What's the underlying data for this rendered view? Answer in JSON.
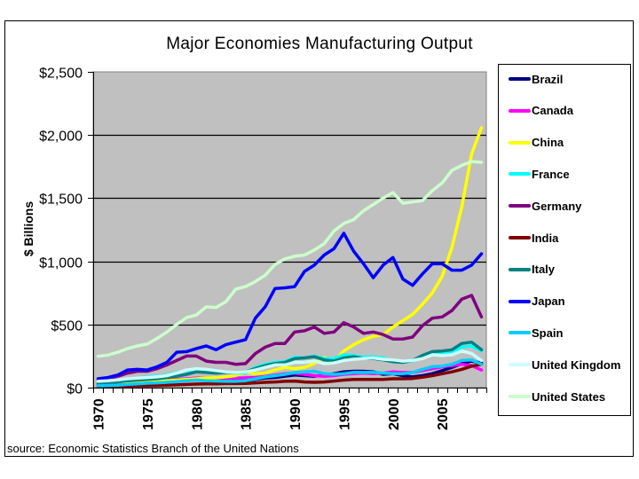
{
  "chart_data": {
    "type": "line",
    "title": "Major Economies Manufacturing Output",
    "xlabel": "",
    "ylabel": "$ Billions",
    "source": "source: Economic Statistics Branch of the United Nations",
    "ylim": [
      0,
      2500
    ],
    "yticks": [
      0,
      500,
      1000,
      1500,
      2000,
      2500
    ],
    "ytick_labels": [
      "$0",
      "$500",
      "$1,000",
      "$1,500",
      "$2,000",
      "$2,500"
    ],
    "xlim": [
      1970,
      2009
    ],
    "xtick_labels": [
      "1970",
      "1975",
      "1980",
      "1985",
      "1990",
      "1995",
      "2000",
      "2005"
    ],
    "grid": "horizontal",
    "plot_background": "#c0c0c0",
    "legend_position": "right",
    "x": [
      1970,
      1971,
      1972,
      1973,
      1974,
      1975,
      1976,
      1977,
      1978,
      1979,
      1980,
      1981,
      1982,
      1983,
      1984,
      1985,
      1986,
      1987,
      1988,
      1989,
      1990,
      1991,
      1992,
      1993,
      1994,
      1995,
      1996,
      1997,
      1998,
      1999,
      2000,
      2001,
      2002,
      2003,
      2004,
      2005,
      2006,
      2007,
      2008,
      2009
    ],
    "series": [
      {
        "name": "Brazil",
        "color": "#000080",
        "values": [
          20,
          22,
          26,
          32,
          38,
          40,
          45,
          50,
          55,
          60,
          70,
          72,
          68,
          55,
          55,
          58,
          65,
          75,
          80,
          90,
          100,
          95,
          90,
          100,
          110,
          125,
          130,
          130,
          125,
          105,
          110,
          95,
          85,
          95,
          110,
          135,
          160,
          190,
          210,
          195
        ]
      },
      {
        "name": "Canada",
        "color": "#ff00ff",
        "values": [
          30,
          33,
          37,
          42,
          48,
          52,
          58,
          60,
          65,
          70,
          75,
          75,
          70,
          72,
          75,
          78,
          80,
          90,
          100,
          110,
          115,
          105,
          95,
          90,
          95,
          105,
          110,
          115,
          110,
          115,
          125,
          120,
          120,
          135,
          150,
          165,
          175,
          185,
          175,
          140
        ]
      },
      {
        "name": "China",
        "color": "#ffff00",
        "values": [
          40,
          42,
          45,
          48,
          50,
          52,
          52,
          55,
          60,
          65,
          70,
          75,
          78,
          85,
          95,
          120,
          110,
          115,
          140,
          160,
          150,
          160,
          190,
          240,
          210,
          290,
          340,
          380,
          405,
          420,
          480,
          530,
          580,
          660,
          750,
          880,
          1110,
          1430,
          1850,
          2058
        ]
      },
      {
        "name": "France",
        "color": "#00ffff",
        "values": [
          40,
          45,
          55,
          70,
          75,
          85,
          90,
          100,
          120,
          135,
          140,
          130,
          120,
          120,
          115,
          118,
          160,
          185,
          200,
          205,
          240,
          235,
          250,
          230,
          230,
          260,
          255,
          240,
          245,
          235,
          210,
          205,
          210,
          240,
          265,
          270,
          285,
          320,
          330,
          290
        ]
      },
      {
        "name": "Germany",
        "color": "#800080",
        "values": [
          60,
          70,
          90,
          115,
          130,
          130,
          150,
          180,
          215,
          250,
          250,
          210,
          200,
          200,
          185,
          190,
          270,
          320,
          350,
          350,
          440,
          450,
          480,
          430,
          440,
          515,
          480,
          430,
          440,
          420,
          385,
          385,
          400,
          490,
          550,
          560,
          610,
          700,
          730,
          560
        ]
      },
      {
        "name": "India",
        "color": "#800000",
        "values": [
          10,
          11,
          12,
          13,
          15,
          16,
          17,
          19,
          22,
          25,
          28,
          30,
          30,
          32,
          32,
          34,
          38,
          42,
          45,
          50,
          52,
          45,
          42,
          45,
          52,
          60,
          65,
          65,
          65,
          65,
          70,
          70,
          72,
          82,
          95,
          110,
          125,
          145,
          170,
          185
        ]
      },
      {
        "name": "Italy",
        "color": "#008080",
        "values": [
          35,
          40,
          45,
          55,
          60,
          65,
          70,
          80,
          90,
          105,
          125,
          120,
          115,
          120,
          120,
          125,
          150,
          175,
          190,
          200,
          230,
          235,
          245,
          220,
          210,
          235,
          245,
          230,
          230,
          220,
          205,
          200,
          215,
          255,
          285,
          290,
          300,
          350,
          360,
          300
        ]
      },
      {
        "name": "Japan",
        "color": "#0000ff",
        "values": [
          70,
          80,
          100,
          140,
          145,
          140,
          165,
          200,
          280,
          285,
          310,
          330,
          300,
          340,
          360,
          380,
          550,
          640,
          785,
          790,
          800,
          920,
          970,
          1050,
          1100,
          1222,
          1080,
          980,
          870,
          970,
          1030,
          860,
          810,
          900,
          980,
          980,
          930,
          930,
          970,
          1060
        ]
      },
      {
        "name": "Spain",
        "color": "#00ccff",
        "values": [
          15,
          17,
          20,
          25,
          30,
          35,
          38,
          42,
          48,
          55,
          60,
          55,
          52,
          50,
          50,
          55,
          70,
          85,
          95,
          105,
          120,
          125,
          130,
          110,
          105,
          110,
          120,
          120,
          120,
          115,
          110,
          110,
          120,
          145,
          165,
          170,
          185,
          215,
          220,
          185
        ]
      },
      {
        "name": "United Kingdom",
        "color": "#ccffff",
        "values": [
          50,
          55,
          62,
          70,
          75,
          80,
          85,
          95,
          115,
          140,
          150,
          145,
          135,
          125,
          120,
          125,
          140,
          160,
          180,
          180,
          200,
          200,
          210,
          190,
          195,
          215,
          225,
          230,
          235,
          225,
          220,
          210,
          215,
          230,
          260,
          255,
          260,
          290,
          270,
          215
        ]
      },
      {
        "name": "United States",
        "color": "#ccffcc",
        "values": [
          248,
          258,
          280,
          310,
          330,
          345,
          390,
          440,
          500,
          555,
          575,
          640,
          635,
          680,
          780,
          800,
          840,
          890,
          975,
          1020,
          1040,
          1050,
          1090,
          1140,
          1240,
          1300,
          1330,
          1400,
          1450,
          1500,
          1545,
          1460,
          1470,
          1480,
          1560,
          1620,
          1720,
          1760,
          1790,
          1784
        ]
      }
    ]
  }
}
